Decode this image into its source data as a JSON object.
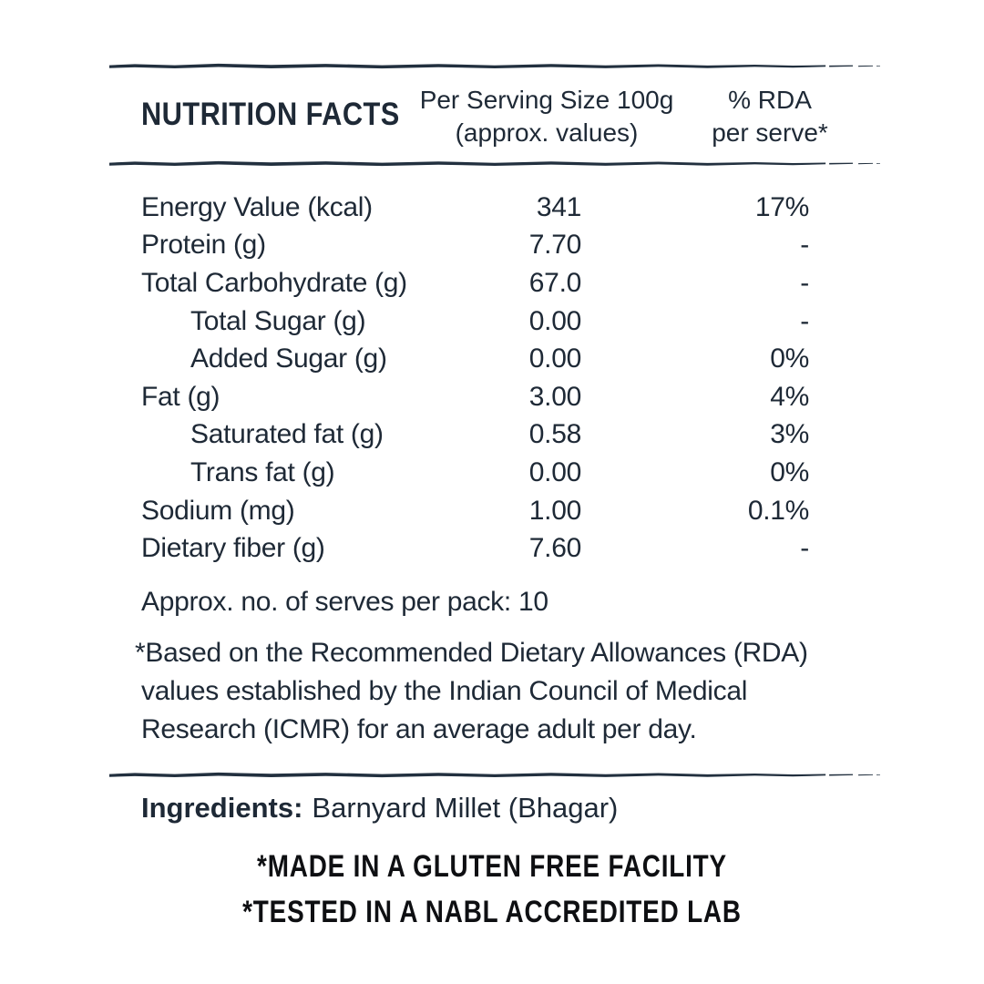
{
  "colors": {
    "ink": "#1e2936",
    "rule": "#22303f",
    "claims_ink": "#0e0f12",
    "background": "#ffffff"
  },
  "header": {
    "title": "NUTRITION FACTS",
    "serving_line1": "Per Serving Size 100g",
    "serving_line2": "(approx. values)",
    "rda_line1": "% RDA",
    "rda_line2": "per serve*"
  },
  "table": {
    "rows": [
      {
        "label": "Energy Value (kcal)",
        "value": "341",
        "rda": "17%",
        "indent": 0
      },
      {
        "label": "Protein (g)",
        "value": "7.70",
        "rda": "-",
        "indent": 0
      },
      {
        "label": "Total Carbohydrate (g)",
        "value": "67.0",
        "rda": "-",
        "indent": 0
      },
      {
        "label": "Total Sugar (g)",
        "value": "0.00",
        "rda": "-",
        "indent": 1
      },
      {
        "label": "Added Sugar (g)",
        "value": "0.00",
        "rda": "0%",
        "indent": 1
      },
      {
        "label": "Fat (g)",
        "value": "3.00",
        "rda": "4%",
        "indent": 0
      },
      {
        "label": "Saturated fat (g)",
        "value": "0.58",
        "rda": "3%",
        "indent": 1
      },
      {
        "label": "Trans fat (g)",
        "value": "0.00",
        "rda": "0%",
        "indent": 1
      },
      {
        "label": "Sodium (mg)",
        "value": "1.00",
        "rda": "0.1%",
        "indent": 0
      },
      {
        "label": "Dietary fiber (g)",
        "value": "7.60",
        "rda": "-",
        "indent": 0
      }
    ]
  },
  "serves_note": "Approx. no. of serves per pack: 10",
  "footnote_lines": [
    "*Based on the Recommended Dietary Allowances (RDA)",
    "values established by the Indian Council of Medical",
    "Research (ICMR) for an average adult per day."
  ],
  "ingredients": {
    "label": "Ingredients:",
    "value": "Barnyard Millet (Bhagar)"
  },
  "claims": [
    "*MADE IN A GLUTEN FREE FACILITY",
    "*TESTED IN A NABL ACCREDITED LAB"
  ]
}
